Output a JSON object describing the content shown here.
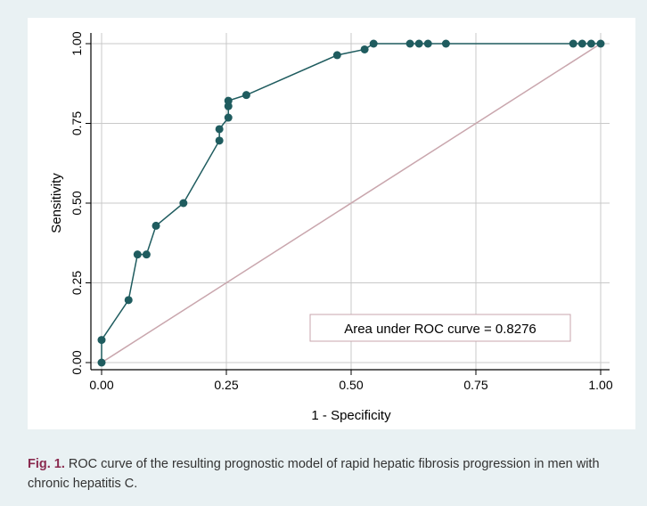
{
  "colors": {
    "background": "#e9f1f3",
    "plot_background": "#ffffff",
    "roc_curve": "#1f5c5f",
    "reference_line": "#c9a6ad",
    "gridline": "#c8c8c8",
    "caption_label": "#8a2b4f"
  },
  "caption": {
    "label": "Fig. 1.",
    "text": " ROC curve of the resulting prognostic model of rapid hepatic fibrosis progression in men with chronic hepatitis C."
  },
  "chart_data": {
    "type": "line",
    "xlabel": "1 - Specificity",
    "ylabel": "Sensitivity",
    "xlim": [
      0,
      1
    ],
    "ylim": [
      0,
      1
    ],
    "x_ticks": [
      "0.00",
      "0.25",
      "0.50",
      "0.75",
      "1.00"
    ],
    "y_ticks": [
      "0.00",
      "0.25",
      "0.50",
      "0.75",
      "1.00"
    ],
    "grid": true,
    "annotation": "Area under ROC curve = 0.8276",
    "series": [
      {
        "markers": true,
        "x": [
          0,
          0,
          0.054,
          0.072,
          0.09,
          0.109,
          0.164,
          0.236,
          0.236,
          0.254,
          0.254,
          0.254,
          0.29,
          0.472,
          0.527,
          0.545,
          0.618,
          0.636,
          0.654,
          0.69,
          0.945,
          0.963,
          0.981,
          1.0
        ],
        "y": [
          0,
          0.071,
          0.196,
          0.339,
          0.339,
          0.429,
          0.5,
          0.696,
          0.732,
          0.768,
          0.804,
          0.821,
          0.839,
          0.964,
          0.982,
          1.0,
          1.0,
          1.0,
          1.0,
          1.0,
          1.0,
          1.0,
          1.0,
          1.0
        ]
      },
      {
        "reference": true,
        "x": [
          0,
          1
        ],
        "y": [
          0,
          1
        ]
      }
    ]
  }
}
